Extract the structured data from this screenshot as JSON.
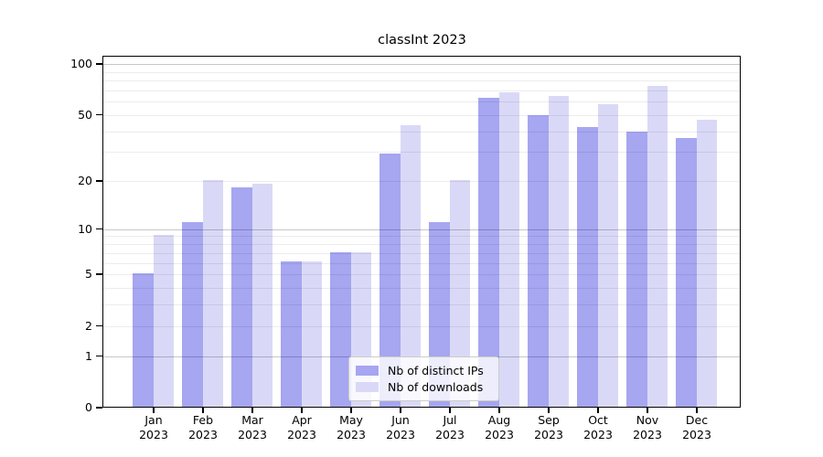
{
  "title": "classInt 2023",
  "chart_data": {
    "type": "bar",
    "title": "classInt 2023",
    "categories": [
      "Jan",
      "Feb",
      "Mar",
      "Apr",
      "May",
      "Jun",
      "Jul",
      "Aug",
      "Sep",
      "Oct",
      "Nov",
      "Dec"
    ],
    "year_label": "2023",
    "series": [
      {
        "name": "Nb of distinct IPs",
        "color": "#a6a6f1",
        "values": [
          5,
          11,
          18,
          6,
          7,
          29,
          11,
          62,
          49,
          42,
          39,
          36
        ]
      },
      {
        "name": "Nb of downloads",
        "color": "#d9d9f7",
        "values": [
          9,
          20,
          19,
          6,
          7,
          43,
          20,
          67,
          64,
          57,
          73,
          46
        ]
      }
    ],
    "yscale": "log1p",
    "ylim": [
      0,
      111
    ],
    "y_ticks": [
      100,
      50,
      20,
      10,
      5,
      2,
      1,
      0
    ],
    "major_gridlines": [
      1,
      10,
      100
    ],
    "minor_gridlines": [
      2,
      3,
      4,
      5,
      6,
      7,
      8,
      9,
      20,
      30,
      40,
      50,
      60,
      70,
      80,
      90
    ],
    "grid": "horizontal",
    "legend_position": "lower center inside"
  },
  "colors": {
    "distinct_ips_bar": "#a6a6f1",
    "downloads_bar": "#d9d9f7",
    "axis_frame": "#000000",
    "major_grid": "rgba(0,0,0,0.22)",
    "minor_grid": "rgba(0,0,0,0.075)",
    "legend_border": "#cccccc",
    "background": "#ffffff"
  }
}
